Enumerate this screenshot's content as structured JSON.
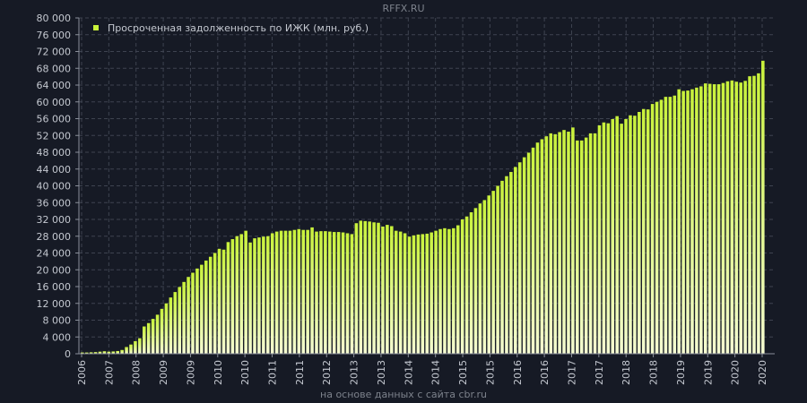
{
  "watermark": "RFFX.RU",
  "source": "на основе данных с сайта cbr.ru",
  "colors": {
    "background": "#161a25",
    "grid": "#3e4350",
    "axis": "#8a8f9a",
    "text": "#c4c8d0",
    "muted": "#7d828c",
    "bar_top": "#c9f23a",
    "bar_bottom": "#f5fbd2"
  },
  "chart_data": {
    "type": "bar",
    "grid": true,
    "legend_position": "top-left",
    "ylim": [
      0,
      80000
    ],
    "yticks": [
      0,
      4000,
      8000,
      12000,
      16000,
      20000,
      24000,
      28000,
      32000,
      36000,
      40000,
      44000,
      48000,
      52000,
      56000,
      60000,
      64000,
      68000,
      72000,
      76000,
      80000
    ],
    "ytick_labels": [
      "0",
      "4 000",
      "8 000",
      "12 000",
      "16 000",
      "20 000",
      "24 000",
      "28 000",
      "32 000",
      "36 000",
      "40 000",
      "44 000",
      "48 000",
      "52 000",
      "56 000",
      "60 000",
      "64 000",
      "68 000",
      "72 000",
      "76 000",
      "80 000"
    ],
    "xtick_labels": [
      "2006",
      "2007",
      "2008",
      "2009",
      "2009",
      "2010",
      "2010",
      "2011",
      "2011",
      "2012",
      "2013",
      "2013",
      "2014",
      "2014",
      "2015",
      "2015",
      "2016",
      "2016",
      "2017",
      "2017",
      "2018",
      "2018",
      "2019",
      "2019",
      "2020",
      "2020"
    ],
    "series": [
      {
        "name": "Просроченная задолженность по ИЖК (млн. руб.)",
        "period": "monthly",
        "start": "2006-01",
        "values": [
          300,
          300,
          350,
          400,
          500,
          600,
          500,
          550,
          650,
          900,
          1600,
          2200,
          3000,
          3700,
          6500,
          7300,
          8300,
          9300,
          10700,
          12000,
          13400,
          14700,
          15900,
          17100,
          18300,
          19300,
          20300,
          21200,
          22200,
          23100,
          24000,
          25000,
          24800,
          26600,
          27300,
          28000,
          28500,
          29300,
          26500,
          27500,
          27700,
          27900,
          28000,
          28700,
          29100,
          29300,
          29300,
          29300,
          29500,
          29700,
          29500,
          29500,
          30100,
          29100,
          29200,
          29200,
          29100,
          29000,
          29000,
          28900,
          28700,
          28500,
          31100,
          31700,
          31600,
          31500,
          31300,
          31200,
          30300,
          30700,
          30400,
          29300,
          29100,
          28700,
          27900,
          28200,
          28400,
          28500,
          28600,
          28900,
          29300,
          29700,
          29900,
          29700,
          29900,
          30600,
          32000,
          32700,
          33700,
          34700,
          35800,
          36600,
          37700,
          38800,
          40000,
          41200,
          42300,
          43300,
          44500,
          45600,
          46800,
          47900,
          49100,
          50300,
          51100,
          51800,
          52500,
          52300,
          52800,
          53300,
          52900,
          53900,
          50800,
          50800,
          51500,
          52500,
          52500,
          54400,
          55100,
          54900,
          55900,
          56600,
          54800,
          55900,
          56800,
          56700,
          57600,
          58300,
          58200,
          59500,
          60000,
          60500,
          61200,
          61200,
          61500,
          63000,
          62600,
          62700,
          63000,
          63400,
          63700,
          64400,
          64300,
          64200,
          64200,
          64500,
          64900,
          65100,
          64800,
          64600,
          65000,
          66100,
          66200,
          66800,
          69800
        ]
      }
    ]
  }
}
